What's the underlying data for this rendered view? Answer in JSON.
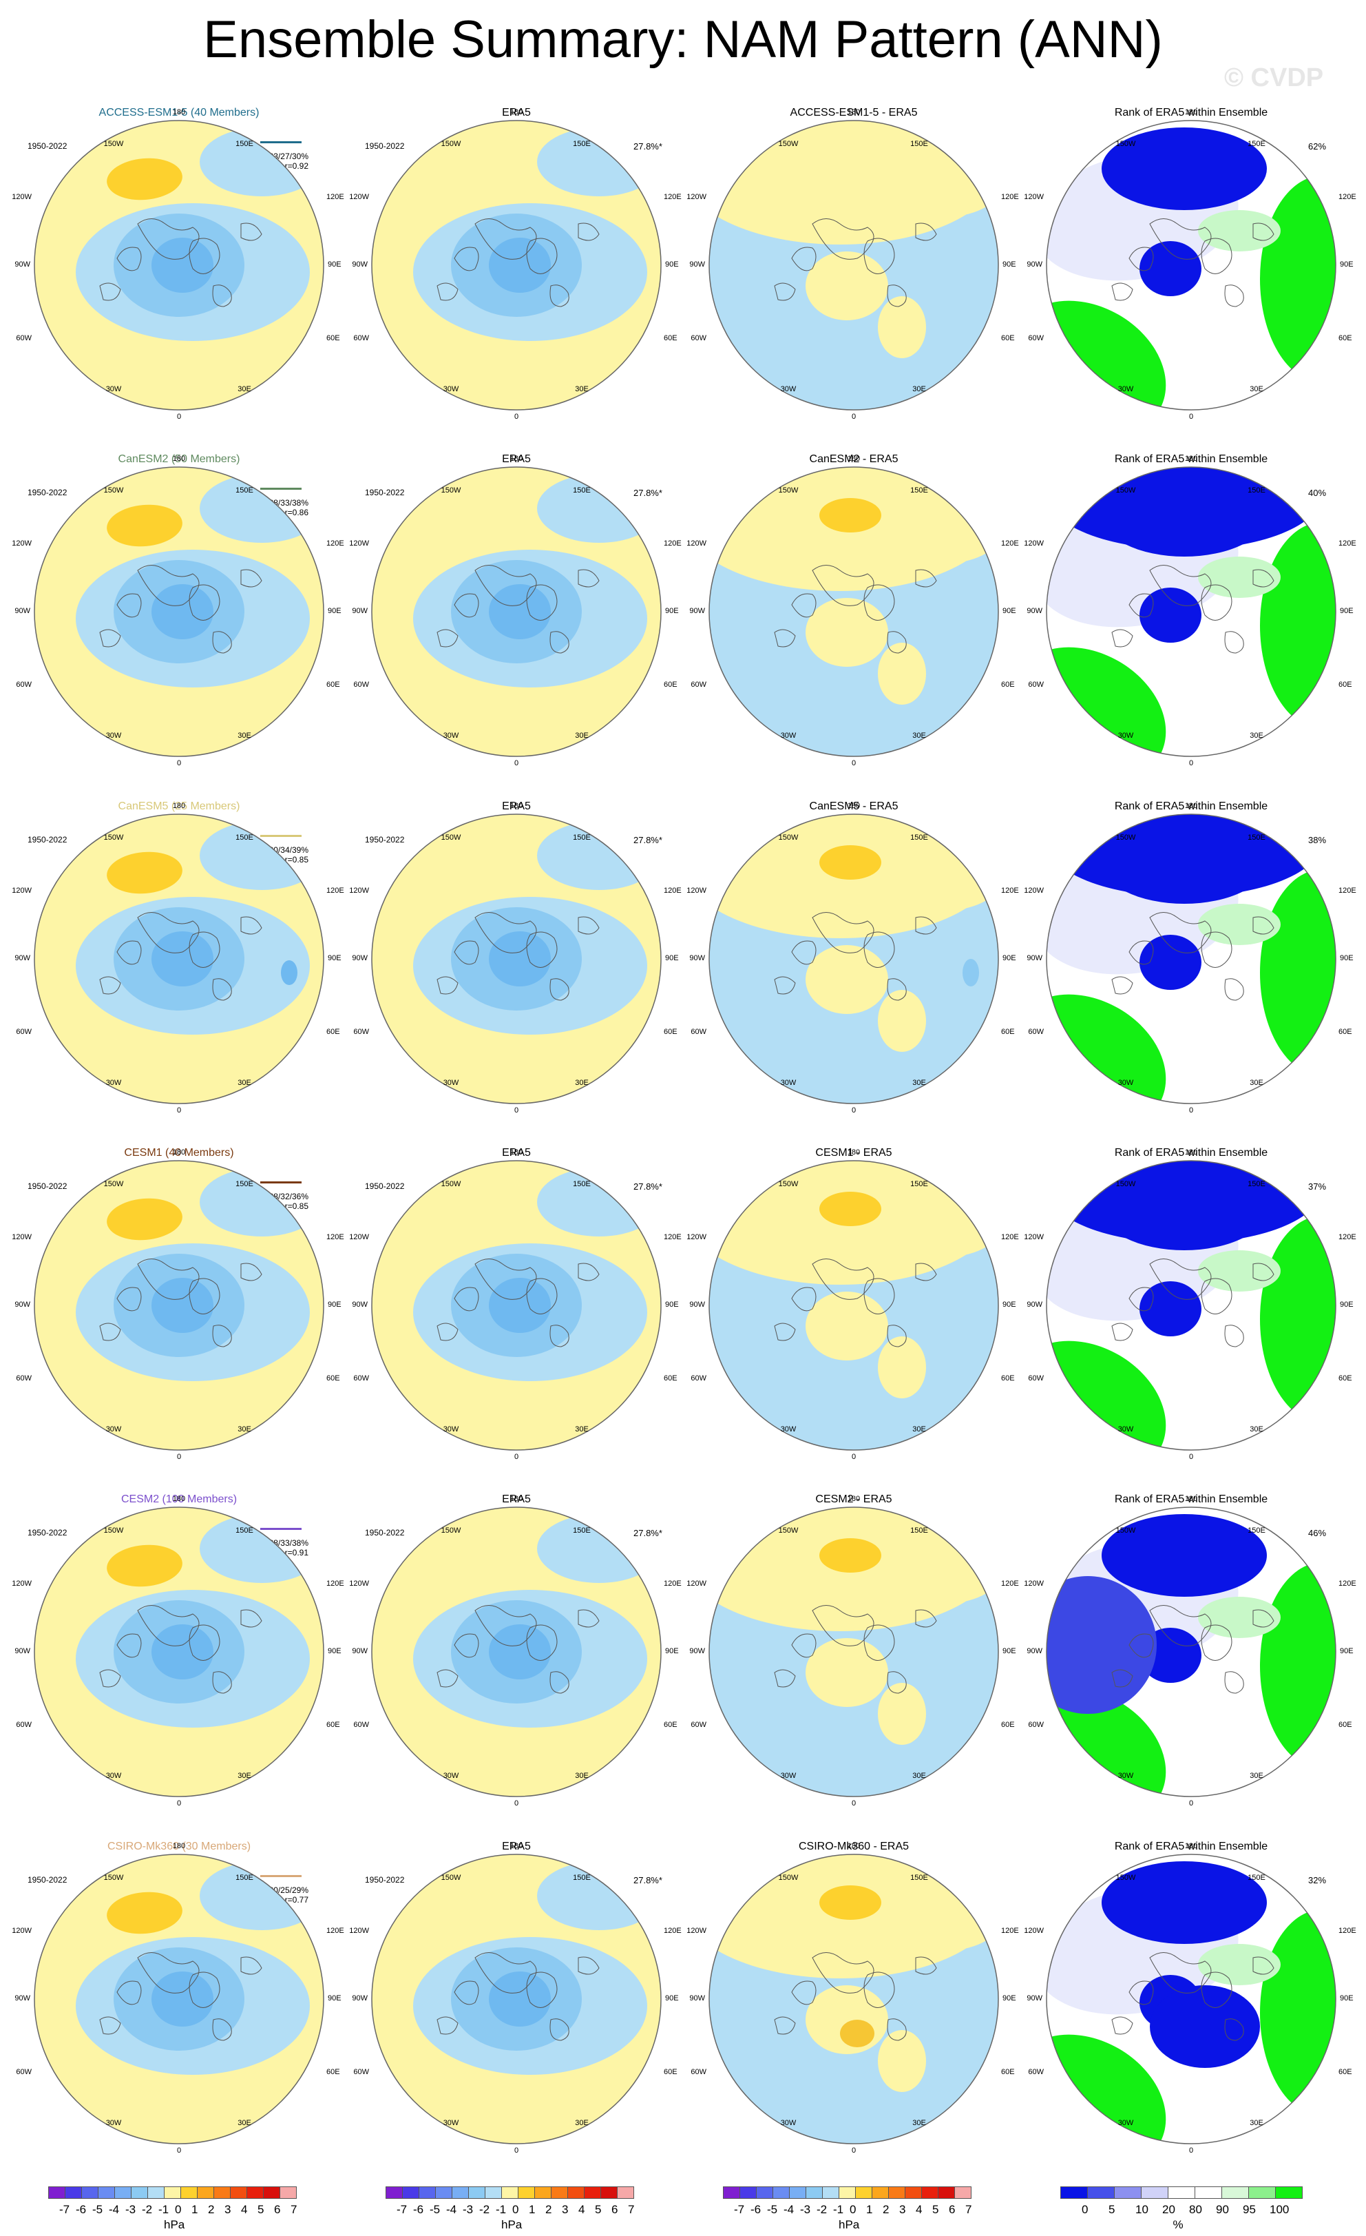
{
  "title": "Ensemble Summary: NAM Pattern (ANN)",
  "watermark": "© CVDP",
  "period": "1950-2022",
  "obs_pct": "27.8%*",
  "obs_title": "ERA5",
  "rank_title": "Rank of ERA5 within Ensemble",
  "lon_labels": {
    "top": "180",
    "tl": "150W",
    "tr": "150E",
    "ul": "120W",
    "ur": "120E",
    "ml": "90W",
    "mr": "90E",
    "ll": "60W",
    "lr": "60E",
    "bl": "30W",
    "br": "30E",
    "bottom": "0"
  },
  "colors": {
    "yellow": "#fdf5a6",
    "lightblue": "#b3def5",
    "blue": "#8ccaf2",
    "medblue": "#6fb9f0",
    "orange": "#fdd12e",
    "rankblue": "#0a14e6",
    "rankgreen": "#13f013"
  },
  "rows": [
    {
      "model_title": "ACCESS-ESM1-5 (40 Members)",
      "model_color": "#1f6d8c",
      "stats": "23/27/30%",
      "r": "r=0.92",
      "diff_title": "ACCESS-ESM1-5 - ERA5",
      "rank_pct": "62%"
    },
    {
      "model_title": "CanESM2 (50 Members)",
      "model_color": "#5f8a5f",
      "stats": "28/33/38%",
      "r": "r=0.86",
      "diff_title": "CanESM2 - ERA5",
      "rank_pct": "40%"
    },
    {
      "model_title": "CanESM5 (25 Members)",
      "model_color": "#d8c878",
      "stats": "30/34/39%",
      "r": "r=0.85",
      "diff_title": "CanESM5 - ERA5",
      "rank_pct": "38%"
    },
    {
      "model_title": "CESM1 (40 Members)",
      "model_color": "#7a3a10",
      "stats": "28/32/36%",
      "r": "r=0.85",
      "diff_title": "CESM1 - ERA5",
      "rank_pct": "37%"
    },
    {
      "model_title": "CESM2 (100 Members)",
      "model_color": "#7b4fcc",
      "stats": "28/33/38%",
      "r": "r=0.91",
      "diff_title": "CESM2 - ERA5",
      "rank_pct": "46%"
    },
    {
      "model_title": "CSIRO-Mk360 (30 Members)",
      "model_color": "#d8a878",
      "stats": "20/25/29%",
      "r": "r=0.77",
      "diff_title": "CSIRO-Mk360 - ERA5",
      "rank_pct": "32%"
    }
  ],
  "colorbar_hpa": {
    "colors": [
      "#7f1fd0",
      "#4a3ae8",
      "#5866ee",
      "#6a8cf2",
      "#78aef4",
      "#8ccaf2",
      "#b3def5",
      "#fdf5a6",
      "#fdd12e",
      "#fba61d",
      "#f97a16",
      "#f24e10",
      "#e8200c",
      "#d8100c",
      "#f6a8a8"
    ],
    "labels": [
      "-7",
      "-6",
      "-5",
      "-4",
      "-3",
      "-2",
      "-1",
      "0",
      "1",
      "2",
      "3",
      "4",
      "5",
      "6",
      "7"
    ],
    "unit": "hPa"
  },
  "colorbar_rank": {
    "colors": [
      "#0a14e6",
      "#4650ea",
      "#8c90f0",
      "#d0d2f8",
      "#ffffff",
      "#ffffff",
      "#d8f8d8",
      "#8cf08c",
      "#13f013"
    ],
    "labels": [
      "0",
      "5",
      "10",
      "20",
      "80",
      "90",
      "95",
      "100"
    ],
    "unit": "%"
  }
}
